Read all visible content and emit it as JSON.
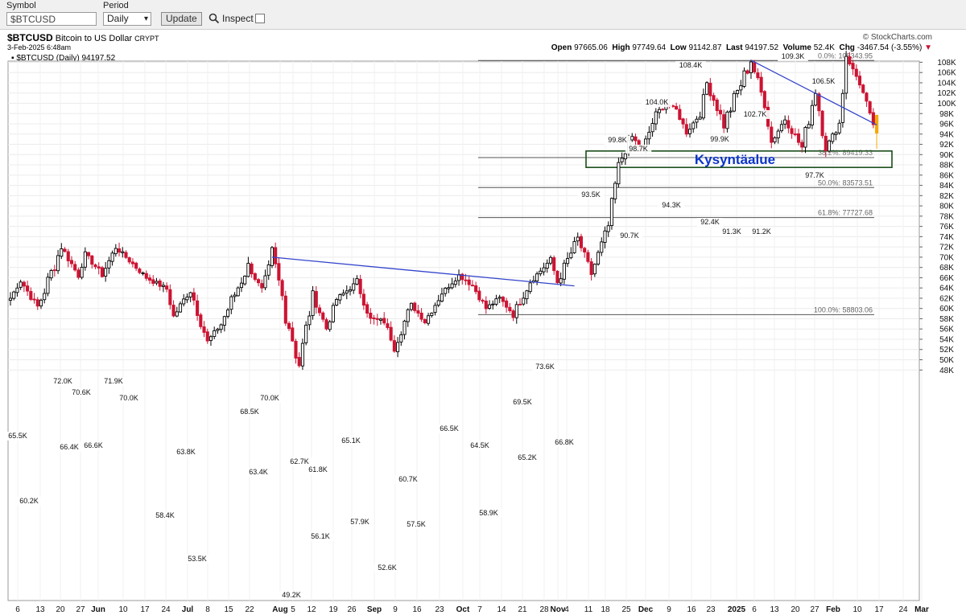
{
  "toolbar": {
    "symbol_label": "Symbol",
    "symbol_value": "$BTCUSD",
    "period_label": "Period",
    "period_value": "Daily",
    "update_label": "Update",
    "inspect_label": "Inspect"
  },
  "header": {
    "symbol": "$BTCUSD",
    "name": "Bitcoin to US Dollar",
    "exchange": "CRYPT",
    "date": "3-Feb-2025 6:48am",
    "copyright": "© StockCharts.com",
    "open_label": "Open",
    "open": "97665.06",
    "high_label": "High",
    "high": "97749.64",
    "low_label": "Low",
    "low": "91142.87",
    "last_label": "Last",
    "last": "94197.52",
    "volume_label": "Volume",
    "volume": "52.4K",
    "chg_label": "Chg",
    "chg": "-3467.54 (-3.55%)",
    "legend": "▪ $BTCUSD (Daily) 94197.52"
  },
  "colors": {
    "up": "#000000",
    "down": "#cc1433",
    "trendline": "#3344cc",
    "zone": "#1a4d1a",
    "zone_text": "#0a34c8",
    "today": "#f2a900"
  },
  "chart_data": {
    "type": "candlestick",
    "title": "$BTCUSD Bitcoin to US Dollar",
    "y_axis": {
      "min": 48000,
      "max": 110000,
      "step": 2000,
      "position": "right"
    },
    "x_axis_ticks": [
      "6",
      "13",
      "20",
      "27",
      "Jun",
      "10",
      "17",
      "24",
      "Jul",
      "8",
      "15",
      "22",
      "Aug",
      "5",
      "12",
      "19",
      "26",
      "Sep",
      "9",
      "16",
      "23",
      "Oct",
      "7",
      "14",
      "21",
      "28",
      "Nov",
      "4",
      "11",
      "18",
      "25",
      "Dec",
      "9",
      "16",
      "23",
      "2025",
      "6",
      "13",
      "20",
      "27",
      "Feb",
      "10",
      "17",
      "24",
      "Mar"
    ],
    "price_path": [
      [
        0,
        62000
      ],
      [
        3,
        65500
      ],
      [
        8,
        60200
      ],
      [
        15,
        72000
      ],
      [
        20,
        66400
      ],
      [
        22,
        70600
      ],
      [
        27,
        66600
      ],
      [
        31,
        71900
      ],
      [
        34,
        70000
      ],
      [
        40,
        66000
      ],
      [
        46,
        63800
      ],
      [
        48,
        58400
      ],
      [
        53,
        63800
      ],
      [
        58,
        53500
      ],
      [
        62,
        57000
      ],
      [
        70,
        68500
      ],
      [
        74,
        63400
      ],
      [
        77,
        70000
      ],
      [
        85,
        49200
      ],
      [
        89,
        62700
      ],
      [
        93,
        56100
      ],
      [
        96,
        61800
      ],
      [
        102,
        65100
      ],
      [
        106,
        57900
      ],
      [
        110,
        57500
      ],
      [
        113,
        52600
      ],
      [
        118,
        60700
      ],
      [
        122,
        57500
      ],
      [
        127,
        63000
      ],
      [
        132,
        66500
      ],
      [
        136,
        64500
      ],
      [
        140,
        60000
      ],
      [
        144,
        62000
      ],
      [
        148,
        58900
      ],
      [
        153,
        65200
      ],
      [
        159,
        69500
      ],
      [
        161,
        65200
      ],
      [
        167,
        73600
      ],
      [
        171,
        66800
      ],
      [
        176,
        76000
      ],
      [
        179,
        88000
      ],
      [
        183,
        93500
      ],
      [
        186,
        90700
      ],
      [
        190,
        98000
      ],
      [
        193,
        99800
      ],
      [
        196,
        98700
      ],
      [
        199,
        94300
      ],
      [
        203,
        98000
      ],
      [
        205,
        104000
      ],
      [
        210,
        96000
      ],
      [
        218,
        108400
      ],
      [
        222,
        99900
      ],
      [
        224,
        92400
      ],
      [
        228,
        97000
      ],
      [
        233,
        91300
      ],
      [
        237,
        102700
      ],
      [
        240,
        91200
      ],
      [
        244,
        96000
      ],
      [
        246,
        109300
      ],
      [
        248,
        106500
      ],
      [
        250,
        104000
      ],
      [
        253,
        97700
      ],
      [
        255,
        94197
      ]
    ],
    "value_labels": [
      {
        "text": "65.5K",
        "value": 65500
      },
      {
        "text": "60.2K",
        "value": 60200
      },
      {
        "text": "72.0K",
        "value": 72000
      },
      {
        "text": "70.6K",
        "value": 70600
      },
      {
        "text": "66.4K",
        "value": 66400
      },
      {
        "text": "66.6K",
        "value": 66600
      },
      {
        "text": "71.9K",
        "value": 71900
      },
      {
        "text": "70.0K",
        "value": 70000
      },
      {
        "text": "63.8K",
        "value": 63800
      },
      {
        "text": "58.4K",
        "value": 58400
      },
      {
        "text": "53.5K",
        "value": 53500
      },
      {
        "text": "68.5K",
        "value": 68500
      },
      {
        "text": "63.4K",
        "value": 63400
      },
      {
        "text": "70.0K",
        "value": 70000
      },
      {
        "text": "62.7K",
        "value": 62700
      },
      {
        "text": "61.8K",
        "value": 61800
      },
      {
        "text": "56.1K",
        "value": 56100
      },
      {
        "text": "49.2K",
        "value": 49200
      },
      {
        "text": "65.1K",
        "value": 65100
      },
      {
        "text": "57.9K",
        "value": 57900
      },
      {
        "text": "52.6K",
        "value": 52600
      },
      {
        "text": "60.7K",
        "value": 60700
      },
      {
        "text": "57.5K",
        "value": 57500
      },
      {
        "text": "66.5K",
        "value": 66500
      },
      {
        "text": "64.5K",
        "value": 64500
      },
      {
        "text": "58.9K",
        "value": 58900
      },
      {
        "text": "69.5K",
        "value": 69500
      },
      {
        "text": "65.2K",
        "value": 65200
      },
      {
        "text": "73.6K",
        "value": 73600
      },
      {
        "text": "66.8K",
        "value": 66800
      },
      {
        "text": "93.5K",
        "value": 93500
      },
      {
        "text": "90.7K",
        "value": 90700
      },
      {
        "text": "99.8K",
        "value": 99800
      },
      {
        "text": "98.7K",
        "value": 98700
      },
      {
        "text": "94.3K",
        "value": 94300
      },
      {
        "text": "104.0K",
        "value": 104000
      },
      {
        "text": "108.4K",
        "value": 108400
      },
      {
        "text": "99.9K",
        "value": 99900
      },
      {
        "text": "92.4K",
        "value": 92400
      },
      {
        "text": "91.3K",
        "value": 91300
      },
      {
        "text": "102.7K",
        "value": 102700
      },
      {
        "text": "91.2K",
        "value": 91200
      },
      {
        "text": "109.3K",
        "value": 109300
      },
      {
        "text": "106.5K",
        "value": 106500
      },
      {
        "text": "97.7K",
        "value": 97700
      }
    ],
    "fib_levels": [
      {
        "label": "0.0%: 108343.95",
        "value": 108343.95
      },
      {
        "label": "38.2%: 89419.33",
        "value": 89419.33
      },
      {
        "label": "50.0%: 83573.51",
        "value": 83573.51
      },
      {
        "label": "61.8%: 77727.68",
        "value": 77727.68
      },
      {
        "label": "100.0%: 58803.06",
        "value": 58803.06
      }
    ],
    "trendlines": [
      {
        "from": {
          "day": 77,
          "value": 70000
        },
        "to": {
          "day": 166,
          "value": 64400
        }
      },
      {
        "from": {
          "day": 218,
          "value": 108400
        },
        "to": {
          "day": 255,
          "value": 95800
        }
      }
    ],
    "demand_zone": {
      "label": "Kysyntäalue",
      "top": 90700,
      "bottom": 87500
    }
  }
}
